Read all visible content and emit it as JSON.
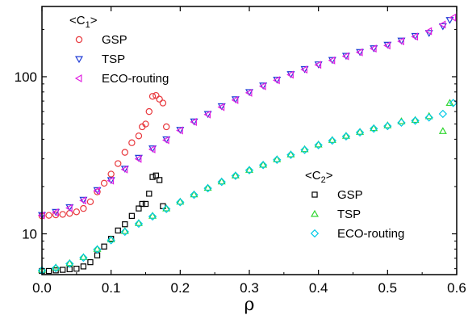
{
  "chart_data": {
    "type": "scatter",
    "xlabel": "ρ",
    "ylabel": "",
    "xlim": [
      0.0,
      0.6
    ],
    "ylim": [
      5.5,
      280
    ],
    "yscale": "log",
    "x_ticks": [
      "0.0",
      "0.1",
      "0.2",
      "0.3",
      "0.4",
      "0.5",
      "0.6"
    ],
    "y_ticks": [
      "10",
      "100"
    ],
    "grid": false,
    "legend_groups": [
      {
        "title_main": "<C",
        "title_sub": "1",
        "title_end": ">",
        "placement": "top-left",
        "entries": [
          "GSP",
          "TSP",
          "ECO-routing"
        ]
      },
      {
        "title_main": "<C",
        "title_sub": "2",
        "title_end": ">",
        "placement": "bottom-right",
        "entries": [
          "GSP",
          "TSP",
          "ECO-routing"
        ]
      }
    ],
    "series": [
      {
        "name": "GSP",
        "group": "C1",
        "marker": "circle",
        "color": "#e8383d",
        "x": [
          0.0,
          0.01,
          0.02,
          0.03,
          0.04,
          0.05,
          0.06,
          0.07,
          0.08,
          0.09,
          0.1,
          0.11,
          0.12,
          0.13,
          0.14,
          0.145,
          0.15,
          0.155,
          0.16,
          0.165,
          0.17,
          0.175,
          0.18
        ],
        "y": [
          13.0,
          13.1,
          13.2,
          13.3,
          13.5,
          13.8,
          14.5,
          16.0,
          18.5,
          21.0,
          24.0,
          28.0,
          33.0,
          38.0,
          42.0,
          48.0,
          50.0,
          60.0,
          75.0,
          76.0,
          72.0,
          68.0,
          48.0
        ]
      },
      {
        "name": "TSP",
        "group": "C1",
        "marker": "triangle-down",
        "color": "#1f3bd6",
        "x": [
          0.0,
          0.02,
          0.04,
          0.06,
          0.08,
          0.1,
          0.12,
          0.14,
          0.16,
          0.18,
          0.2,
          0.22,
          0.24,
          0.26,
          0.28,
          0.3,
          0.32,
          0.34,
          0.36,
          0.38,
          0.4,
          0.42,
          0.44,
          0.46,
          0.48,
          0.5,
          0.52,
          0.54,
          0.56,
          0.58,
          0.59
        ],
        "y": [
          13.2,
          13.8,
          14.8,
          16.5,
          19.0,
          22.0,
          26.0,
          30.5,
          35.0,
          40.0,
          46.0,
          52.0,
          58.0,
          65.0,
          72.0,
          80.0,
          88.0,
          96.0,
          104.0,
          112.0,
          120.0,
          128.0,
          136.0,
          144.0,
          152.0,
          160.0,
          170.0,
          182.0,
          190.0,
          210.0,
          230.0
        ]
      },
      {
        "name": "ECO-routing",
        "group": "C1",
        "marker": "triangle-left",
        "color": "#e020e0",
        "x": [
          0.0,
          0.02,
          0.04,
          0.06,
          0.08,
          0.1,
          0.12,
          0.14,
          0.16,
          0.18,
          0.2,
          0.22,
          0.24,
          0.26,
          0.28,
          0.3,
          0.32,
          0.34,
          0.36,
          0.38,
          0.4,
          0.42,
          0.44,
          0.46,
          0.48,
          0.5,
          0.52,
          0.54,
          0.56,
          0.58,
          0.595
        ],
        "y": [
          13.1,
          13.7,
          14.6,
          16.3,
          18.8,
          21.8,
          25.7,
          30.0,
          34.5,
          39.5,
          45.5,
          51.5,
          57.5,
          64.0,
          71.0,
          79.0,
          87.0,
          95.0,
          103.0,
          111.0,
          119.0,
          127.0,
          135.0,
          143.0,
          151.0,
          158.0,
          168.0,
          180.0,
          195.0,
          215.0,
          238.0
        ]
      },
      {
        "name": "GSP",
        "group": "C2",
        "marker": "square",
        "color": "#000000",
        "x": [
          0.0,
          0.01,
          0.02,
          0.03,
          0.04,
          0.05,
          0.06,
          0.07,
          0.08,
          0.09,
          0.1,
          0.11,
          0.12,
          0.13,
          0.14,
          0.145,
          0.15,
          0.155,
          0.16,
          0.165,
          0.17,
          0.175
        ],
        "y": [
          5.8,
          5.8,
          5.85,
          5.9,
          5.95,
          6.0,
          6.2,
          6.6,
          7.3,
          8.3,
          9.3,
          10.5,
          11.5,
          13.0,
          14.5,
          15.5,
          15.5,
          18.0,
          23.0,
          23.5,
          22.0,
          15.0
        ]
      },
      {
        "name": "TSP",
        "group": "C2",
        "marker": "triangle-up",
        "color": "#2fd62f",
        "x": [
          0.0,
          0.02,
          0.04,
          0.06,
          0.08,
          0.1,
          0.12,
          0.14,
          0.16,
          0.18,
          0.2,
          0.22,
          0.24,
          0.26,
          0.28,
          0.3,
          0.32,
          0.34,
          0.36,
          0.38,
          0.4,
          0.42,
          0.44,
          0.46,
          0.48,
          0.5,
          0.52,
          0.54,
          0.56,
          0.58,
          0.59
        ],
        "y": [
          5.9,
          6.1,
          6.5,
          7.1,
          8.0,
          9.2,
          10.4,
          11.7,
          13.0,
          14.5,
          16.0,
          17.8,
          19.6,
          21.5,
          23.5,
          25.5,
          27.5,
          29.8,
          32.0,
          34.5,
          37.0,
          39.5,
          42.0,
          44.5,
          47.0,
          49.0,
          52.0,
          53.0,
          56.0,
          45.0,
          68.0
        ]
      },
      {
        "name": "ECO-routing",
        "group": "C2",
        "marker": "diamond",
        "color": "#00c8e6",
        "x": [
          0.0,
          0.02,
          0.04,
          0.06,
          0.08,
          0.1,
          0.12,
          0.14,
          0.16,
          0.18,
          0.2,
          0.22,
          0.24,
          0.26,
          0.28,
          0.3,
          0.32,
          0.34,
          0.36,
          0.38,
          0.4,
          0.42,
          0.44,
          0.46,
          0.48,
          0.5,
          0.52,
          0.54,
          0.56,
          0.58,
          0.595
        ],
        "y": [
          5.85,
          6.05,
          6.45,
          7.05,
          7.95,
          9.1,
          10.3,
          11.6,
          12.9,
          14.4,
          15.9,
          17.7,
          19.5,
          21.4,
          23.4,
          25.4,
          27.4,
          29.6,
          31.8,
          34.2,
          36.7,
          39.2,
          41.7,
          44.2,
          46.7,
          48.5,
          51.0,
          52.5,
          55.0,
          58.0,
          68.0
        ]
      }
    ]
  }
}
